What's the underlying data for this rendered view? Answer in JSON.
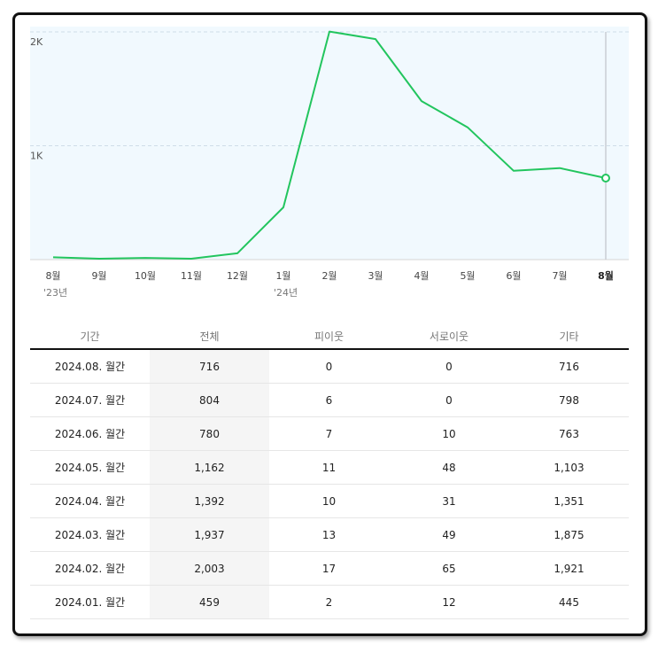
{
  "chart_data": {
    "type": "line",
    "x": [
      "8월",
      "9월",
      "10월",
      "11월",
      "12월",
      "1월",
      "2월",
      "3월",
      "4월",
      "5월",
      "6월",
      "7월",
      "8월"
    ],
    "year_labels": [
      {
        "index": 0,
        "label": "'23년"
      },
      {
        "index": 5,
        "label": "'24년"
      }
    ],
    "series": [
      {
        "values": [
          20,
          8,
          15,
          8,
          55,
          459,
          2003,
          1937,
          1392,
          1162,
          780,
          804,
          716
        ]
      }
    ],
    "y_ticks": [
      {
        "value": 1000,
        "label": "1K"
      },
      {
        "value": 2000,
        "label": "2K"
      }
    ],
    "ylim": [
      0,
      2000
    ],
    "highlighted_index": 12,
    "grid": true,
    "line_color": "#22c55e",
    "background_color": "#f1f9fe"
  },
  "table": {
    "headers": [
      "기간",
      "전체",
      "피이웃",
      "서로이웃",
      "기타"
    ],
    "rows": [
      [
        "2024.08. 월간",
        "716",
        "0",
        "0",
        "716"
      ],
      [
        "2024.07. 월간",
        "804",
        "6",
        "0",
        "798"
      ],
      [
        "2024.06. 월간",
        "780",
        "7",
        "10",
        "763"
      ],
      [
        "2024.05. 월간",
        "1,162",
        "11",
        "48",
        "1,103"
      ],
      [
        "2024.04. 월간",
        "1,392",
        "10",
        "31",
        "1,351"
      ],
      [
        "2024.03. 월간",
        "1,937",
        "13",
        "49",
        "1,875"
      ],
      [
        "2024.02. 월간",
        "2,003",
        "17",
        "65",
        "1,921"
      ],
      [
        "2024.01. 월간",
        "459",
        "2",
        "12",
        "445"
      ]
    ]
  }
}
